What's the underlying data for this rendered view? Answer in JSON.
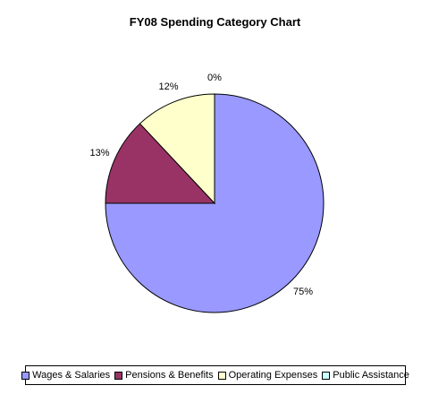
{
  "chart_data": {
    "type": "pie",
    "title": "FY08 Spending Category Chart",
    "slices": [
      {
        "name": "Wages & Salaries",
        "value": 75,
        "label": "75%",
        "color": "#9999FF"
      },
      {
        "name": "Pensions & Benefits",
        "value": 13,
        "label": "13%",
        "color": "#993366"
      },
      {
        "name": "Operating Expenses",
        "value": 12,
        "label": "12%",
        "color": "#FFFFCC"
      },
      {
        "name": "Public Assistance",
        "value": 0,
        "label": "0%",
        "color": "#CCFFFF"
      }
    ],
    "legend_position": "bottom"
  }
}
